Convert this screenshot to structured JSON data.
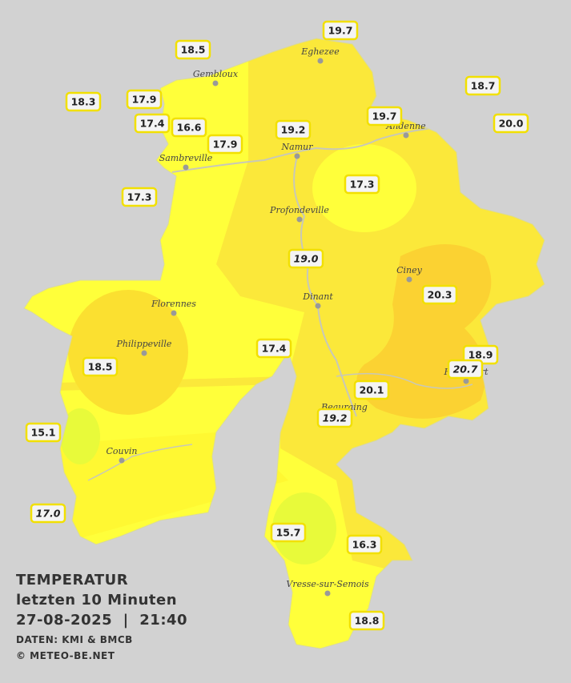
{
  "title": [
    "TEMPERATUR",
    "letzten 10 Minuten",
    "27-08-2025  |  21:40"
  ],
  "credits": [
    "DATEN: KMI & BMCB",
    "© METEO-BE.NET"
  ],
  "cities": [
    {
      "name": "Eghezee"
    },
    {
      "name": "Gembloux"
    },
    {
      "name": "Andenne"
    },
    {
      "name": "Namur"
    },
    {
      "name": "Sambreville"
    },
    {
      "name": "Profondeville"
    },
    {
      "name": "Ciney"
    },
    {
      "name": "Dinant"
    },
    {
      "name": "Florennes"
    },
    {
      "name": "Philippeville"
    },
    {
      "name": "Rochefort"
    },
    {
      "name": "Beauraing"
    },
    {
      "name": "Couvin"
    },
    {
      "name": "Vresse-sur-Semois"
    }
  ],
  "stations": [
    {
      "label": "18.5"
    },
    {
      "label": "19.7"
    },
    {
      "label": "18.3"
    },
    {
      "label": "17.9"
    },
    {
      "label": "17.4"
    },
    {
      "label": "16.6"
    },
    {
      "label": "17.9"
    },
    {
      "label": "19.2"
    },
    {
      "label": "19.7"
    },
    {
      "label": "18.7"
    },
    {
      "label": "20.0"
    },
    {
      "label": "17.3"
    },
    {
      "label": "17.3"
    },
    {
      "label": "19.0"
    },
    {
      "label": "20.3"
    },
    {
      "label": "17.4"
    },
    {
      "label": "18.5"
    },
    {
      "label": "18.9"
    },
    {
      "label": "20.7"
    },
    {
      "label": "20.1"
    },
    {
      "label": "19.2"
    },
    {
      "label": "15.1"
    },
    {
      "label": "17.0"
    },
    {
      "label": "15.7"
    },
    {
      "label": "16.3"
    },
    {
      "label": "18.8"
    }
  ]
}
